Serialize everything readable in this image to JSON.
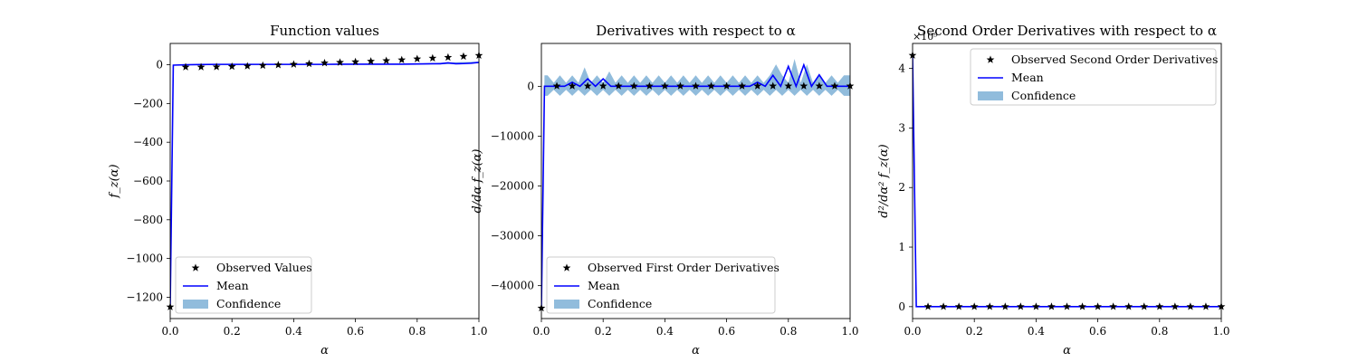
{
  "chart_data": [
    {
      "type": "line",
      "title": "Function values",
      "xlabel": "α",
      "ylabel": "f_z(α)",
      "xlim": [
        0,
        1
      ],
      "ylim": [
        -1310,
        110
      ],
      "xticks": [
        0.0,
        0.2,
        0.4,
        0.6,
        0.8,
        1.0
      ],
      "xtick_labels": [
        "0.0",
        "0.2",
        "0.4",
        "0.6",
        "0.8",
        "1.0"
      ],
      "yticks": [
        0,
        -200,
        -400,
        -600,
        -800,
        -1000,
        -1200
      ],
      "ytick_labels": [
        "0",
        "−200",
        "−400",
        "−600",
        "−800",
        "−1000",
        "−1200"
      ],
      "legend_position": "lower-left",
      "legend": [
        "Observed Values",
        "Mean",
        "Confidence"
      ],
      "observed": {
        "x": [
          0.0,
          0.05,
          0.1,
          0.15,
          0.2,
          0.25,
          0.3,
          0.35,
          0.4,
          0.45,
          0.5,
          0.55,
          0.6,
          0.65,
          0.7,
          0.75,
          0.8,
          0.85,
          0.9,
          0.95,
          1.0
        ],
        "y": [
          -1250,
          -12,
          -12,
          -11,
          -9,
          -7,
          -4,
          -1,
          2,
          5,
          9,
          12,
          15,
          18,
          21,
          25,
          30,
          34,
          38,
          43,
          48
        ]
      },
      "mean": {
        "x": [
          0.0,
          0.01,
          0.05,
          0.1,
          0.15,
          0.2,
          0.25,
          0.3,
          0.35,
          0.4,
          0.45,
          0.5,
          0.55,
          0.6,
          0.65,
          0.7,
          0.75,
          0.8,
          0.85,
          0.875,
          0.9,
          0.925,
          0.95,
          0.975,
          1.0
        ],
        "y": [
          -1250,
          -2,
          0,
          1,
          2,
          2,
          2,
          2,
          2,
          2,
          2,
          2,
          3,
          3,
          3,
          3,
          3,
          4,
          5,
          5,
          10,
          5,
          6,
          8,
          12
        ]
      },
      "confidence": {
        "x": [
          0.0,
          0.01,
          0.05,
          0.1,
          0.2,
          0.4,
          0.6,
          0.8,
          0.9,
          1.0
        ],
        "lower": [
          -1255,
          -4,
          -2,
          -1,
          -1,
          -1,
          0,
          1,
          3,
          8
        ],
        "upper": [
          -1245,
          0,
          2,
          3,
          3,
          4,
          5,
          6,
          12,
          16
        ]
      }
    },
    {
      "type": "line",
      "title": "Derivatives with respect to α",
      "xlabel": "α",
      "ylabel": "d/dα f_z(α)",
      "xlim": [
        0,
        1
      ],
      "ylim": [
        -46600,
        8600
      ],
      "xticks": [
        0.0,
        0.2,
        0.4,
        0.6,
        0.8,
        1.0
      ],
      "xtick_labels": [
        "0.0",
        "0.2",
        "0.4",
        "0.6",
        "0.8",
        "1.0"
      ],
      "yticks": [
        0,
        -10000,
        -20000,
        -30000,
        -40000
      ],
      "ytick_labels": [
        "0",
        "−10000",
        "−20000",
        "−30000",
        "−40000"
      ],
      "legend_position": "lower-left",
      "legend": [
        "Observed First Order Derivatives",
        "Mean",
        "Confidence"
      ],
      "observed": {
        "x": [
          0.0,
          0.05,
          0.1,
          0.15,
          0.2,
          0.25,
          0.3,
          0.35,
          0.4,
          0.45,
          0.5,
          0.55,
          0.6,
          0.65,
          0.7,
          0.75,
          0.8,
          0.85,
          0.9,
          0.95,
          1.0
        ],
        "y": [
          -44500,
          50,
          50,
          50,
          50,
          50,
          50,
          50,
          50,
          50,
          50,
          50,
          50,
          50,
          50,
          50,
          50,
          50,
          50,
          50,
          50
        ]
      },
      "mean": {
        "x": [
          0.0,
          0.01,
          0.05,
          0.075,
          0.1,
          0.125,
          0.15,
          0.175,
          0.2,
          0.225,
          0.25,
          0.3,
          0.4,
          0.5,
          0.6,
          0.65,
          0.675,
          0.7,
          0.725,
          0.75,
          0.775,
          0.8,
          0.825,
          0.85,
          0.875,
          0.9,
          0.925,
          0.95,
          1.0
        ],
        "y": [
          -44500,
          0,
          0,
          0,
          800,
          0,
          1500,
          0,
          1500,
          0,
          0,
          0,
          0,
          0,
          0,
          0,
          0,
          800,
          0,
          2200,
          0,
          4000,
          0,
          4300,
          0,
          2300,
          0,
          0,
          0
        ]
      },
      "confidence": {
        "x": [
          0.0,
          0.01,
          0.02,
          0.04,
          0.06,
          0.08,
          0.1,
          0.12,
          0.14,
          0.16,
          0.18,
          0.2,
          0.22,
          0.24,
          0.26,
          0.28,
          0.3,
          0.32,
          0.34,
          0.36,
          0.38,
          0.4,
          0.42,
          0.44,
          0.46,
          0.48,
          0.5,
          0.52,
          0.54,
          0.56,
          0.58,
          0.6,
          0.62,
          0.64,
          0.66,
          0.68,
          0.7,
          0.72,
          0.74,
          0.76,
          0.78,
          0.8,
          0.82,
          0.84,
          0.86,
          0.88,
          0.9,
          0.92,
          0.94,
          0.96,
          0.98,
          1.0
        ],
        "lower": [
          -44500,
          -1900,
          -1900,
          -700,
          -1900,
          -700,
          -1900,
          -700,
          -1900,
          -700,
          -1900,
          -700,
          -1900,
          -700,
          -1900,
          -700,
          -1900,
          -700,
          -1900,
          -700,
          -1900,
          -700,
          -1900,
          -700,
          -1900,
          -700,
          -1900,
          -700,
          -1900,
          -700,
          -1900,
          -700,
          -1900,
          -700,
          -1900,
          -700,
          -1900,
          -700,
          -1900,
          -700,
          -1900,
          -700,
          -1900,
          -700,
          -1900,
          -700,
          -1900,
          -700,
          -1900,
          -700,
          -1900,
          -1900
        ],
        "upper": [
          -44500,
          2200,
          2200,
          700,
          2200,
          700,
          2200,
          700,
          3800,
          700,
          2200,
          700,
          3000,
          700,
          2200,
          700,
          2200,
          700,
          2200,
          700,
          2200,
          700,
          2200,
          700,
          2200,
          700,
          2200,
          700,
          2200,
          700,
          2200,
          700,
          2200,
          700,
          2200,
          700,
          2200,
          700,
          2200,
          4400,
          2200,
          700,
          5500,
          700,
          4400,
          700,
          2200,
          700,
          2200,
          700,
          2200,
          2200
        ]
      }
    },
    {
      "type": "line",
      "title": "Second Order Derivatives with respect to α",
      "xlabel": "α",
      "ylabel": "d²/dα² f_z(α)",
      "offset_text": "×10⁹",
      "xlim": [
        0,
        1
      ],
      "ylim": [
        -0.2,
        4.42
      ],
      "xticks": [
        0.0,
        0.2,
        0.4,
        0.6,
        0.8,
        1.0
      ],
      "xtick_labels": [
        "0.0",
        "0.2",
        "0.4",
        "0.6",
        "0.8",
        "1.0"
      ],
      "yticks": [
        0,
        1,
        2,
        3,
        4
      ],
      "ytick_labels": [
        "0",
        "1",
        "2",
        "3",
        "4"
      ],
      "legend_position": "upper-right",
      "legend": [
        "Observed Second Order Derivatives",
        "Mean",
        "Confidence"
      ],
      "observed": {
        "x": [
          0.0,
          0.05,
          0.1,
          0.15,
          0.2,
          0.25,
          0.3,
          0.35,
          0.4,
          0.45,
          0.5,
          0.55,
          0.6,
          0.65,
          0.7,
          0.75,
          0.8,
          0.85,
          0.9,
          0.95,
          1.0
        ],
        "y": [
          4.22,
          0,
          0,
          0,
          0,
          0,
          0,
          0,
          0,
          0,
          0,
          0,
          0,
          0,
          0,
          0,
          0,
          0,
          0,
          0,
          0
        ]
      },
      "mean": {
        "x": [
          0.0,
          0.012,
          1.0
        ],
        "y": [
          4.22,
          0,
          0
        ]
      },
      "confidence": {
        "x": [
          0.0,
          1.0
        ],
        "lower": [
          0,
          0
        ],
        "upper": [
          0,
          0
        ]
      }
    }
  ],
  "colors": {
    "observed": "#000000",
    "mean": "#0000ff",
    "confidence": "#91bcdc"
  }
}
